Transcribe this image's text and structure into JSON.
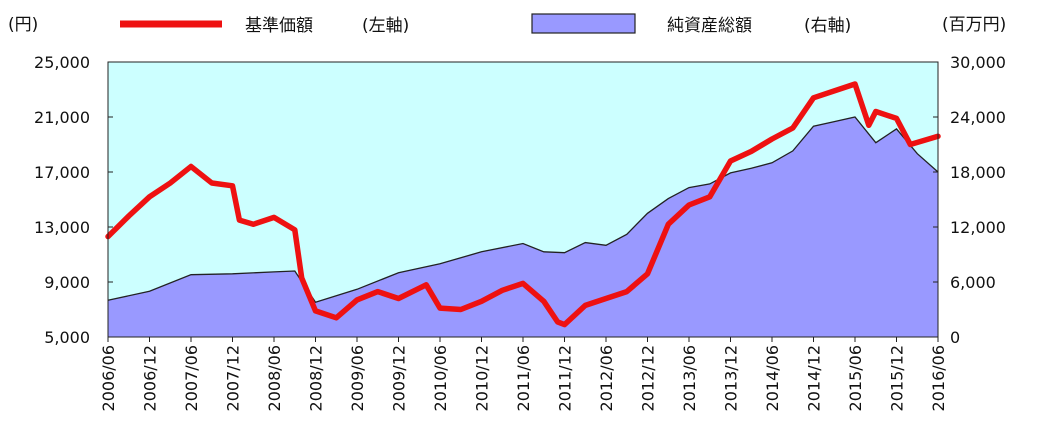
{
  "chart_data": {
    "type": "area+line",
    "left_unit": "(円)",
    "right_unit": "(百万円)",
    "legend": {
      "line_label": "基準価額",
      "line_axis": "(左軸)",
      "area_label": "純資産総額",
      "area_axis": "(右軸)"
    },
    "colors": {
      "plot_bg": "#ccffff",
      "area_fill": "#9999ff",
      "area_edge": "#222222",
      "line": "#ee1111"
    },
    "left_axis": {
      "min": 5000,
      "max": 25000,
      "ticks": [
        "5,000",
        "9,000",
        "13,000",
        "17,000",
        "21,000",
        "25,000"
      ]
    },
    "right_axis": {
      "min": 0,
      "max": 30000,
      "ticks": [
        "0",
        "6,000",
        "12,000",
        "18,000",
        "24,000",
        "30,000"
      ]
    },
    "x_start": "2006/06",
    "x_end": "2016/06",
    "x_ticks": [
      "2006/06",
      "2006/12",
      "2007/06",
      "2007/12",
      "2008/06",
      "2008/12",
      "2009/06",
      "2009/12",
      "2010/06",
      "2010/12",
      "2011/06",
      "2011/12",
      "2012/06",
      "2012/12",
      "2013/06",
      "2013/12",
      "2014/06",
      "2014/12",
      "2015/06",
      "2015/12",
      "2016/06"
    ],
    "nav_series": [
      [
        "2006/06",
        12300
      ],
      [
        "2006/09",
        13800
      ],
      [
        "2006/12",
        15200
      ],
      [
        "2007/03",
        16200
      ],
      [
        "2007/06",
        17400
      ],
      [
        "2007/09",
        16200
      ],
      [
        "2007/12",
        16000
      ],
      [
        "2008/01",
        13500
      ],
      [
        "2008/03",
        13200
      ],
      [
        "2008/06",
        13700
      ],
      [
        "2008/09",
        12800
      ],
      [
        "2008/10",
        9300
      ],
      [
        "2008/12",
        6900
      ],
      [
        "2009/03",
        6400
      ],
      [
        "2009/06",
        7700
      ],
      [
        "2009/09",
        8300
      ],
      [
        "2009/12",
        7800
      ],
      [
        "2010/04",
        8800
      ],
      [
        "2010/06",
        7100
      ],
      [
        "2010/09",
        7000
      ],
      [
        "2010/12",
        7600
      ],
      [
        "2011/03",
        8400
      ],
      [
        "2011/06",
        8900
      ],
      [
        "2011/09",
        7600
      ],
      [
        "2011/11",
        6100
      ],
      [
        "2011/12",
        5900
      ],
      [
        "2012/03",
        7300
      ],
      [
        "2012/06",
        7800
      ],
      [
        "2012/09",
        8300
      ],
      [
        "2012/12",
        9600
      ],
      [
        "2013/03",
        13200
      ],
      [
        "2013/06",
        14600
      ],
      [
        "2013/09",
        15200
      ],
      [
        "2013/12",
        17800
      ],
      [
        "2014/03",
        18500
      ],
      [
        "2014/06",
        19400
      ],
      [
        "2014/09",
        20200
      ],
      [
        "2014/12",
        22400
      ],
      [
        "2015/03",
        22900
      ],
      [
        "2015/06",
        23400
      ],
      [
        "2015/08",
        20400
      ],
      [
        "2015/09",
        21400
      ],
      [
        "2015/12",
        20900
      ],
      [
        "2016/02",
        19000
      ],
      [
        "2016/06",
        19600
      ]
    ],
    "aum_series": [
      [
        "2006/06",
        4000
      ],
      [
        "2006/12",
        5000
      ],
      [
        "2007/06",
        6800
      ],
      [
        "2007/12",
        6900
      ],
      [
        "2008/06",
        7100
      ],
      [
        "2008/09",
        7200
      ],
      [
        "2008/12",
        3800
      ],
      [
        "2009/06",
        5200
      ],
      [
        "2009/12",
        7000
      ],
      [
        "2010/06",
        8000
      ],
      [
        "2010/12",
        9300
      ],
      [
        "2011/06",
        10200
      ],
      [
        "2011/09",
        9300
      ],
      [
        "2011/12",
        9200
      ],
      [
        "2012/03",
        10300
      ],
      [
        "2012/06",
        10000
      ],
      [
        "2012/09",
        11200
      ],
      [
        "2012/12",
        13500
      ],
      [
        "2013/03",
        15100
      ],
      [
        "2013/06",
        16300
      ],
      [
        "2013/09",
        16700
      ],
      [
        "2013/12",
        17900
      ],
      [
        "2014/03",
        18400
      ],
      [
        "2014/06",
        19000
      ],
      [
        "2014/09",
        20300
      ],
      [
        "2014/12",
        23000
      ],
      [
        "2015/03",
        23500
      ],
      [
        "2015/06",
        24000
      ],
      [
        "2015/09",
        21200
      ],
      [
        "2015/12",
        22700
      ],
      [
        "2016/03",
        20000
      ],
      [
        "2016/06",
        18000
      ]
    ]
  }
}
